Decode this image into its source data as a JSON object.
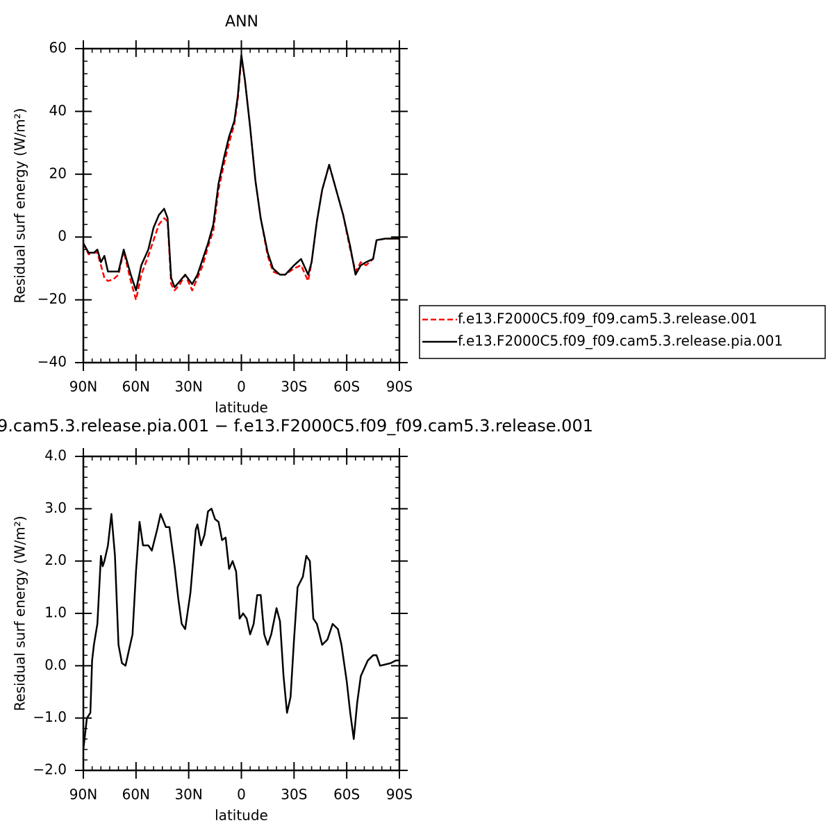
{
  "chart_data": [
    {
      "type": "line",
      "title": "ANN",
      "xlabel": "latitude",
      "ylabel": "Residual surf energy (W/m²)",
      "x": [
        90,
        87,
        84,
        82,
        80,
        78,
        76,
        73,
        70,
        67,
        63,
        60,
        57,
        53,
        50,
        47,
        44,
        42,
        40,
        38,
        35,
        32,
        28,
        25,
        22,
        19,
        16,
        13,
        10,
        7,
        4,
        2,
        0,
        -2,
        -5,
        -8,
        -11,
        -15,
        -18,
        -22,
        -25,
        -30,
        -34,
        -38,
        -40,
        -43,
        -46,
        -50,
        -53,
        -58,
        -62,
        -65,
        -68,
        -71,
        -75,
        -77,
        -82,
        -90
      ],
      "series": [
        {
          "name": "f.e13.F2000C5.f09_f09.cam5.3.release.001",
          "color": "#ff0000",
          "dash": true,
          "values": [
            -2,
            -5.5,
            -5,
            -5,
            -9,
            -13,
            -14,
            -13.5,
            -12,
            -4.5,
            -14,
            -20,
            -12,
            -6,
            -1,
            4,
            6,
            5,
            -15,
            -17,
            -15,
            -12,
            -17,
            -13,
            -9,
            -3,
            2,
            15,
            23,
            30,
            36,
            44,
            57,
            50,
            35,
            18,
            6,
            -6,
            -11,
            -12,
            -12,
            -10,
            -9,
            -14,
            -8,
            5,
            15,
            23,
            17,
            7,
            -4,
            -11,
            -8,
            -9,
            -7,
            -1,
            -0.5,
            -0.5
          ]
        },
        {
          "name": "f.e13.F2000C5.f09_f09.cam5.3.release.pia.001",
          "color": "#000000",
          "dash": false,
          "values": [
            -2,
            -5,
            -5,
            -4,
            -8,
            -6,
            -11,
            -11,
            -11,
            -4,
            -12,
            -17,
            -9,
            -4,
            3,
            7,
            9,
            6,
            -13,
            -16,
            -14,
            -12,
            -15,
            -12,
            -7,
            -2,
            4,
            17,
            25,
            32,
            37,
            45,
            58,
            50,
            35,
            18,
            6,
            -5,
            -10,
            -12,
            -12,
            -9,
            -7,
            -12,
            -8,
            5,
            15,
            23,
            17,
            7,
            -3,
            -12,
            -9,
            -8,
            -7,
            -1,
            -0.5,
            -0.5
          ]
        }
      ],
      "xlim": [
        90,
        -90
      ],
      "xticks": [
        {
          "value": 90,
          "label": "90N"
        },
        {
          "value": 60,
          "label": "60N"
        },
        {
          "value": 30,
          "label": "30N"
        },
        0,
        {
          "value": -30,
          "label": "30S"
        },
        {
          "value": -60,
          "label": "60S"
        },
        {
          "value": -90,
          "label": "90S"
        }
      ],
      "ylim": [
        -40,
        60
      ],
      "yticks": [
        {
          "value": -40,
          "label": "−40"
        },
        {
          "value": -20,
          "label": "−20"
        },
        0,
        20,
        40,
        60
      ],
      "legend": "outside-right"
    },
    {
      "type": "line",
      "title": "9.cam5.3.release.pia.001 − f.e13.F2000C5.f09_f09.cam5.3.release.001",
      "xlabel": "latitude",
      "ylabel": "Residual surf energy (W/m²)",
      "x": [
        90,
        88,
        86,
        85,
        84,
        82,
        80,
        79,
        78,
        76,
        74,
        72,
        70,
        68,
        66,
        64,
        62,
        60,
        58,
        56,
        53,
        51,
        48,
        46,
        43,
        41,
        38,
        36,
        34,
        32,
        29,
        26,
        25,
        23,
        21,
        19,
        17,
        15,
        13,
        11,
        9,
        7,
        5,
        3,
        1,
        -1,
        -3,
        -5,
        -7,
        -9,
        -11,
        -13,
        -15,
        -17,
        -20,
        -22,
        -24,
        -26,
        -28,
        -30,
        -32,
        -35,
        -37,
        -39,
        -41,
        -43,
        -46,
        -49,
        -52,
        -55,
        -57,
        -60,
        -62,
        -64,
        -66,
        -68,
        -70,
        -72,
        -75,
        -77,
        -79,
        -85,
        -88,
        -90
      ],
      "series": [
        {
          "color": "#000000",
          "dash": false,
          "values": [
            -1.6,
            -1.0,
            -0.9,
            0.1,
            0.4,
            0.8,
            2.1,
            1.9,
            2.0,
            2.3,
            2.9,
            2.1,
            0.4,
            0.05,
            0.0,
            0.3,
            0.6,
            1.8,
            2.75,
            2.3,
            2.3,
            2.2,
            2.6,
            2.9,
            2.65,
            2.65,
            1.9,
            1.3,
            0.8,
            0.7,
            1.4,
            2.6,
            2.7,
            2.3,
            2.5,
            2.95,
            3.0,
            2.8,
            2.75,
            2.4,
            2.45,
            1.85,
            2.0,
            1.8,
            0.9,
            1.0,
            0.9,
            0.6,
            0.8,
            1.35,
            1.35,
            0.6,
            0.4,
            0.6,
            1.1,
            0.85,
            -0.2,
            -0.9,
            -0.6,
            0.5,
            1.5,
            1.7,
            2.1,
            2.0,
            0.9,
            0.8,
            0.4,
            0.5,
            0.8,
            0.7,
            0.4,
            -0.3,
            -0.9,
            -1.4,
            -0.7,
            -0.2,
            -0.05,
            0.1,
            0.2,
            0.2,
            0.0,
            0.05,
            0.1,
            0.1
          ]
        }
      ],
      "xlim": [
        90,
        -90
      ],
      "xticks": [
        {
          "value": 90,
          "label": "90N"
        },
        {
          "value": 60,
          "label": "60N"
        },
        {
          "value": 30,
          "label": "30N"
        },
        0,
        {
          "value": -30,
          "label": "30S"
        },
        {
          "value": -60,
          "label": "60S"
        },
        {
          "value": -90,
          "label": "90S"
        }
      ],
      "ylim": [
        -2,
        4
      ],
      "yticks": [
        {
          "value": -2,
          "label": "−2.0"
        },
        {
          "value": -1,
          "label": "−1.0"
        },
        {
          "value": 0,
          "label": "0.0"
        },
        {
          "value": 1,
          "label": "1.0"
        },
        {
          "value": 2,
          "label": "2.0"
        },
        {
          "value": 3,
          "label": "3.0"
        },
        {
          "value": 4,
          "label": "4.0"
        }
      ]
    }
  ]
}
